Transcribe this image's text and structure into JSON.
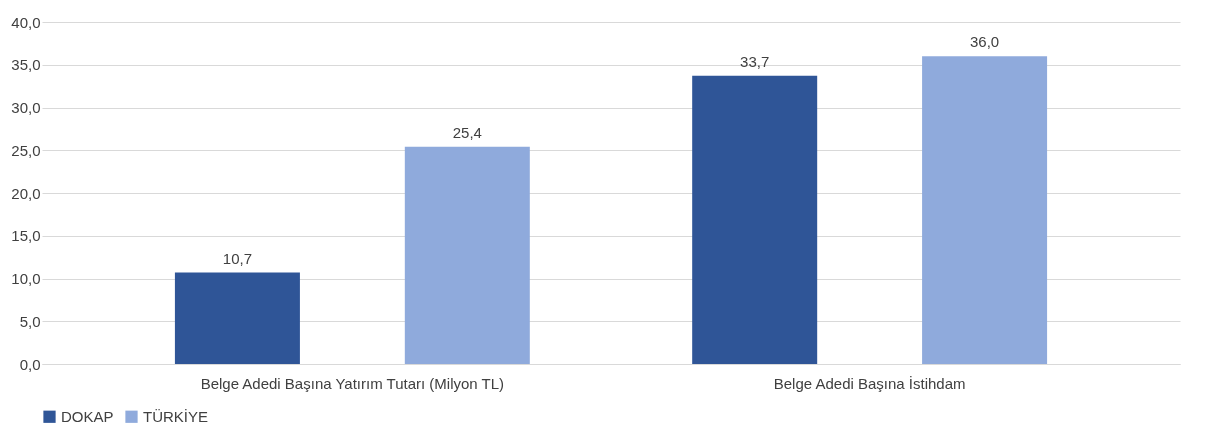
{
  "chart_data": {
    "type": "bar",
    "categories": [
      "Belge Adedi Başına Yatırım Tutarı (Milyon TL)",
      "Belge Adedi Başına İstihdam"
    ],
    "series": [
      {
        "name": "DOKAP",
        "color": "#2f5597",
        "values": [
          10.7,
          33.7
        ],
        "value_labels": [
          "10,7",
          "33,7"
        ]
      },
      {
        "name": "TÜRKİYE",
        "color": "#8faadc",
        "values": [
          25.4,
          36.0
        ],
        "value_labels": [
          "25,4",
          "36,0"
        ]
      }
    ],
    "ylim": [
      0,
      40
    ],
    "yticks": [
      {
        "value": 0,
        "label": "0,0"
      },
      {
        "value": 5,
        "label": "5,0"
      },
      {
        "value": 10,
        "label": "10,0"
      },
      {
        "value": 15,
        "label": "15,0"
      },
      {
        "value": 20,
        "label": "20,0"
      },
      {
        "value": 25,
        "label": "25,0"
      },
      {
        "value": 30,
        "label": "30,0"
      },
      {
        "value": 35,
        "label": "35,0"
      },
      {
        "value": 40,
        "label": "40,0"
      }
    ],
    "grid": "y",
    "legend": "bottom"
  }
}
